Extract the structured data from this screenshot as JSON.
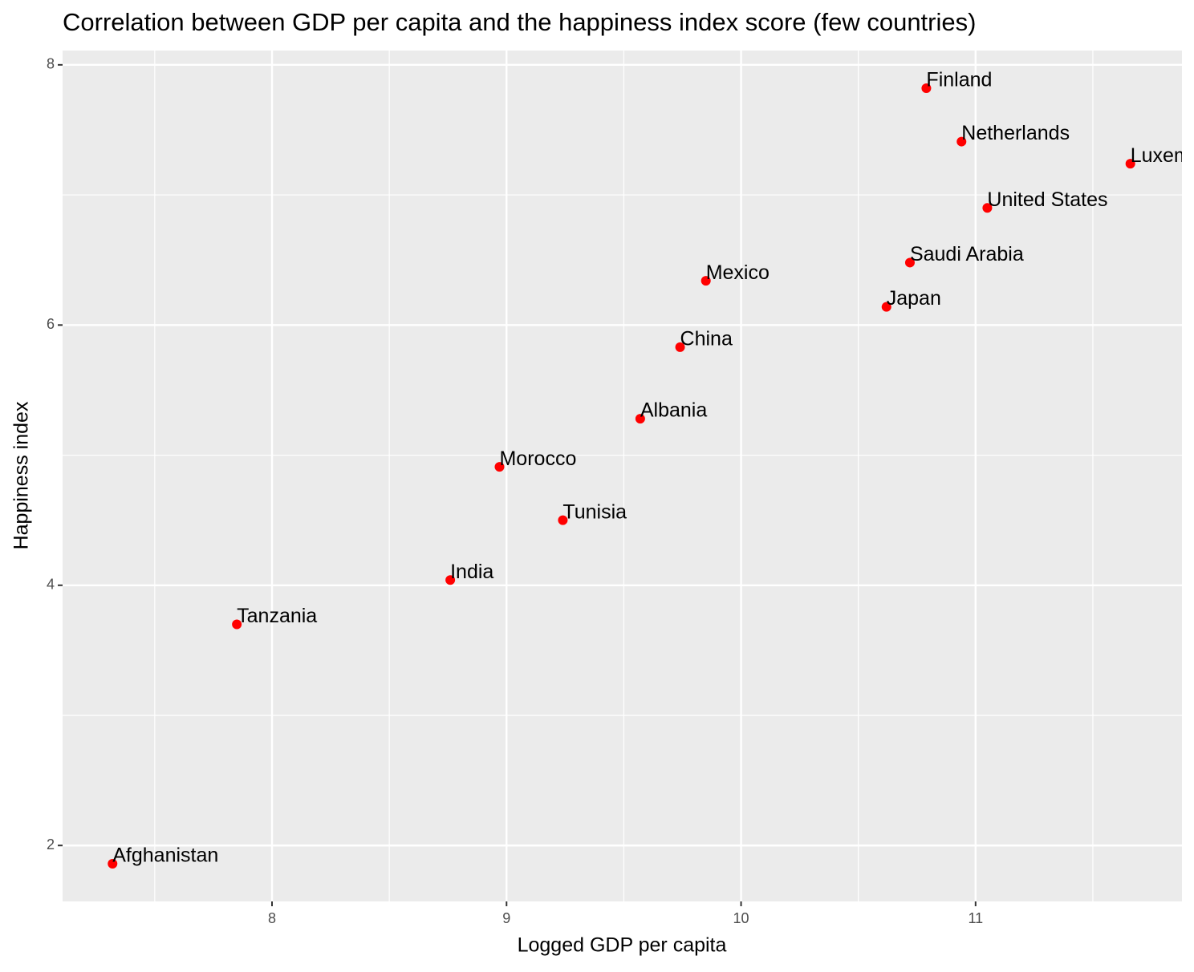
{
  "chart_data": {
    "type": "scatter",
    "title": "Correlation between GDP per capita and the happiness index score (few countries)",
    "x_label": "Logged GDP per capita",
    "y_label": "Happiness index",
    "labels": [
      "Afghanistan",
      "Tanzania",
      "India",
      "Morocco",
      "Tunisia",
      "Albania",
      "China",
      "Mexico",
      "Japan",
      "Saudi Arabia",
      "Finland",
      "Netherlands",
      "United States",
      "Luxembourg"
    ],
    "x": [
      7.32,
      7.85,
      8.76,
      8.97,
      9.24,
      9.57,
      9.74,
      9.85,
      10.62,
      10.72,
      10.79,
      10.94,
      11.05,
      11.66
    ],
    "values": [
      1.86,
      3.7,
      4.04,
      4.91,
      4.5,
      5.28,
      5.83,
      6.34,
      6.14,
      6.48,
      7.82,
      7.41,
      6.9,
      7.24
    ],
    "color": "#ff0000",
    "xlim": [
      7.107,
      11.88
    ],
    "ylim": [
      1.57,
      8.11
    ],
    "xticks": [
      8,
      9,
      10,
      11
    ],
    "yticks": [
      2,
      4,
      6,
      8
    ],
    "grid": true
  }
}
